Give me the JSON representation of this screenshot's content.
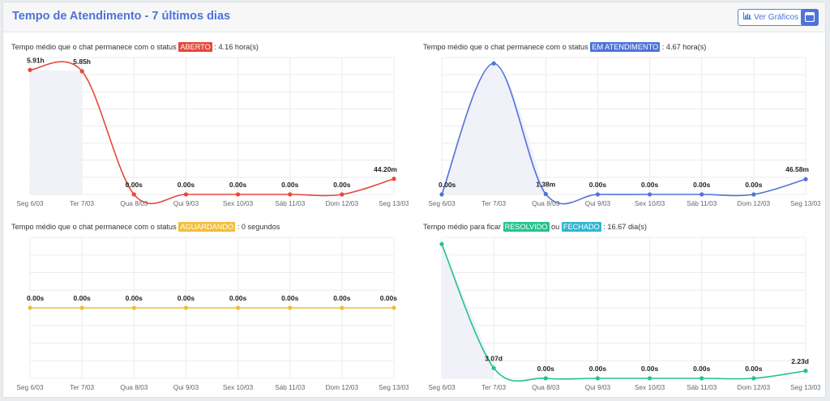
{
  "header": {
    "title": "Tempo de Atendimento - 7 últimos dias",
    "charts_button_label": "Ver Gráficos",
    "charts_button_icon": "bar-chart-icon",
    "minimize_button_icon": "window-minimize-icon"
  },
  "chart_data": [
    {
      "id": "aberto",
      "type": "line",
      "caption_prefix": "Tempo médio que o chat permanece com o status",
      "badges": [
        {
          "text": "ABERTO",
          "color": "#e5483b"
        }
      ],
      "caption_suffix": ": 4.16 hora(s)",
      "categories": [
        "Seg 6/03",
        "Ter 7/03",
        "Qua 8/03",
        "Qui 9/03",
        "Sex 10/03",
        "Sáb 11/03",
        "Dom 12/03",
        "Seg 13/03"
      ],
      "values": [
        5.91,
        5.85,
        0,
        0,
        0,
        0,
        0,
        0.74
      ],
      "labels": [
        "5.91h",
        "5.85h",
        "0.00s",
        "0.00s",
        "0.00s",
        "0.00s",
        "0.00s",
        "44.20m"
      ],
      "ylim": [
        0,
        6.5
      ],
      "color": "#e5483b",
      "area_points": 2,
      "grid": true
    },
    {
      "id": "em-atendimento",
      "type": "line",
      "caption_prefix": "Tempo médio que o chat permanece com o status",
      "badges": [
        {
          "text": "EM ATENDIMENTO",
          "color": "#4f73d9"
        }
      ],
      "caption_suffix": ": 4.67 hora(s)",
      "categories": [
        "Seg 6/03",
        "Ter 7/03",
        "Qua 8/03",
        "Qui 9/03",
        "Sex 10/03",
        "Sáb 11/03",
        "Dom 12/03",
        "Seg 13/03"
      ],
      "values": [
        0,
        6.7,
        0.02,
        0,
        0,
        0,
        0,
        0.78
      ],
      "labels": [
        "0.00s",
        "",
        "1.38m",
        "0.00s",
        "0.00s",
        "0.00s",
        "0.00s",
        "46.58m"
      ],
      "ylim": [
        0,
        7
      ],
      "color": "#4f73d9",
      "area_points": 3,
      "grid": true
    },
    {
      "id": "aguardando",
      "type": "line",
      "caption_prefix": "Tempo médio que o chat permanece com o status",
      "badges": [
        {
          "text": "AGUARDANDO",
          "color": "#f2be3a"
        }
      ],
      "caption_suffix": ": 0 segundos",
      "categories": [
        "Seg 6/03",
        "Ter 7/03",
        "Qua 8/03",
        "Qui 9/03",
        "Sex 10/03",
        "Sáb 11/03",
        "Dom 12/03",
        "Seg 13/03"
      ],
      "values": [
        0,
        0,
        0,
        0,
        0,
        0,
        0,
        0
      ],
      "labels": [
        "0.00s",
        "0.00s",
        "0.00s",
        "0.00s",
        "0.00s",
        "0.00s",
        "0.00s",
        "0.00s"
      ],
      "ylim": [
        -1,
        1
      ],
      "color": "#f2be3a",
      "area_points": 0,
      "grid": true
    },
    {
      "id": "resolvido",
      "type": "line",
      "caption_prefix": "Tempo médio para ficar",
      "badges": [
        {
          "text": "RESOLVIDO",
          "color": "#22c38e"
        },
        {
          "text": "FECHADO",
          "color": "#30b6d2"
        }
      ],
      "badge_joiner": "ou",
      "caption_suffix": ": 16.67 dia(s)",
      "categories": [
        "Seg 6/03",
        "Ter 7/03",
        "Qua 8/03",
        "Qui 9/03",
        "Sex 10/03",
        "Sáb 11/03",
        "Dom 12/03",
        "Seg 13/03"
      ],
      "values": [
        40,
        3.07,
        0,
        0,
        0,
        0,
        0,
        2.23
      ],
      "labels": [
        "",
        "3.07d",
        "0.00s",
        "0.00s",
        "0.00s",
        "0.00s",
        "0.00s",
        "2.23d"
      ],
      "ylim": [
        0,
        42
      ],
      "color": "#22c38e",
      "area_points": 2,
      "grid": true
    }
  ]
}
